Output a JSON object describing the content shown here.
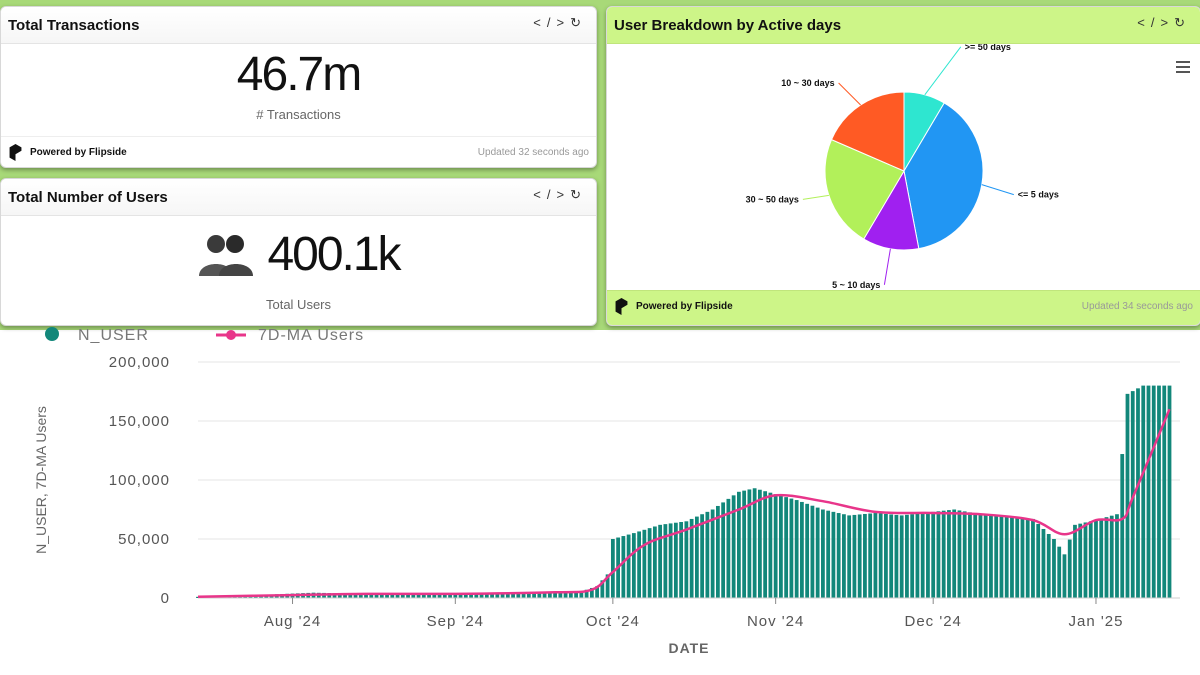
{
  "cards": {
    "transactions": {
      "title": "Total Transactions",
      "value": "46.7m",
      "label": "# Transactions",
      "powered_by": "Powered by Flipside",
      "updated": "Updated 32 seconds ago",
      "code_icon": "code-icon",
      "refresh_icon": "refresh-icon"
    },
    "users": {
      "title": "Total Number of Users",
      "value": "400.1k",
      "label": "Total Users",
      "people_icon": "people-icon",
      "code_icon": "code-icon",
      "refresh_icon": "refresh-icon"
    },
    "pie": {
      "title": "User Breakdown by Active days",
      "powered_by": "Powered by Flipside",
      "updated": "Updated 34 seconds ago",
      "menu_icon": "hamburger-menu-icon",
      "code_icon": "code-icon",
      "refresh_icon": "refresh-icon"
    }
  },
  "chart_data": [
    {
      "type": "pie",
      "title": "User Breakdown by Active days",
      "slices": [
        {
          "label": ">= 50 days",
          "value": 8.5,
          "color": "#2ee6d0"
        },
        {
          "label": "<= 5 days",
          "value": 38.5,
          "color": "#2196f3"
        },
        {
          "label": "5 ~ 10 days",
          "value": 11.5,
          "color": "#a020f0"
        },
        {
          "label": "30 ~ 50 days",
          "value": 23,
          "color": "#b2f05a"
        },
        {
          "label": "10 ~ 30 days",
          "value": 18.5,
          "color": "#ff5a24"
        }
      ]
    },
    {
      "type": "bar",
      "xlabel": "DATE",
      "ylabel": "N_USER, 7D-MA Users",
      "ylim": [
        0,
        200000
      ],
      "yticks": [
        0,
        50000,
        100000,
        150000,
        200000
      ],
      "ytick_labels": [
        "0",
        "50,000",
        "100,000",
        "150,000",
        "200,000"
      ],
      "xlim": [
        "2024-07-14",
        "2025-01-17"
      ],
      "xticks": [
        {
          "date": "2024-08-01",
          "label": "Aug '24"
        },
        {
          "date": "2024-09-01",
          "label": "Sep '24"
        },
        {
          "date": "2024-10-01",
          "label": "Oct '24"
        },
        {
          "date": "2024-11-01",
          "label": "Nov '24"
        },
        {
          "date": "2024-12-01",
          "label": "Dec '24"
        },
        {
          "date": "2025-01-01",
          "label": "Jan '25"
        }
      ],
      "grid": true,
      "legend_position": "top-left",
      "series": [
        {
          "name": "N_USER",
          "kind": "bar",
          "color": "#12877a",
          "points": [
            [
              "2024-07-14",
              1000
            ],
            [
              "2024-07-28",
              3000
            ],
            [
              "2024-08-05",
              4500
            ],
            [
              "2024-08-15",
              3500
            ],
            [
              "2024-08-25",
              3000
            ],
            [
              "2024-09-01",
              3500
            ],
            [
              "2024-09-10",
              4500
            ],
            [
              "2024-09-18",
              5000
            ],
            [
              "2024-09-25",
              5500
            ],
            [
              "2024-09-28",
              10000
            ],
            [
              "2024-09-30",
              20000
            ],
            [
              "2024-10-01",
              50000
            ],
            [
              "2024-10-05",
              55000
            ],
            [
              "2024-10-10",
              62000
            ],
            [
              "2024-10-15",
              65000
            ],
            [
              "2024-10-20",
              75000
            ],
            [
              "2024-10-25",
              90000
            ],
            [
              "2024-10-28",
              93000
            ],
            [
              "2024-11-01",
              88000
            ],
            [
              "2024-11-05",
              83000
            ],
            [
              "2024-11-10",
              75000
            ],
            [
              "2024-11-15",
              70000
            ],
            [
              "2024-11-20",
              72000
            ],
            [
              "2024-11-25",
              70000
            ],
            [
              "2024-12-01",
              73000
            ],
            [
              "2024-12-05",
              75000
            ],
            [
              "2024-12-10",
              71000
            ],
            [
              "2024-12-15",
              69000
            ],
            [
              "2024-12-20",
              67000
            ],
            [
              "2024-12-24",
              50000
            ],
            [
              "2024-12-26",
              37000
            ],
            [
              "2024-12-28",
              62000
            ],
            [
              "2025-01-01",
              66000
            ],
            [
              "2025-01-05",
              71000
            ],
            [
              "2025-01-07",
              173000
            ],
            [
              "2025-01-10",
              180000
            ],
            [
              "2025-01-13",
              180000
            ],
            [
              "2025-01-15",
              180000
            ]
          ]
        },
        {
          "name": "7D-MA Users",
          "kind": "line",
          "color": "#e8358a",
          "points": [
            [
              "2024-07-14",
              1000
            ],
            [
              "2024-08-01",
              2500
            ],
            [
              "2024-08-15",
              3500
            ],
            [
              "2024-09-01",
              3500
            ],
            [
              "2024-09-20",
              4800
            ],
            [
              "2024-09-27",
              7000
            ],
            [
              "2024-10-01",
              22000
            ],
            [
              "2024-10-07",
              45000
            ],
            [
              "2024-10-15",
              58000
            ],
            [
              "2024-10-25",
              75000
            ],
            [
              "2024-11-01",
              87000
            ],
            [
              "2024-11-10",
              82000
            ],
            [
              "2024-11-20",
              73000
            ],
            [
              "2024-12-01",
              72000
            ],
            [
              "2024-12-10",
              71000
            ],
            [
              "2024-12-20",
              66000
            ],
            [
              "2024-12-26",
              54000
            ],
            [
              "2025-01-01",
              66000
            ],
            [
              "2025-01-06",
              67000
            ],
            [
              "2025-01-08",
              85000
            ],
            [
              "2025-01-15",
              160000
            ]
          ]
        }
      ]
    }
  ]
}
